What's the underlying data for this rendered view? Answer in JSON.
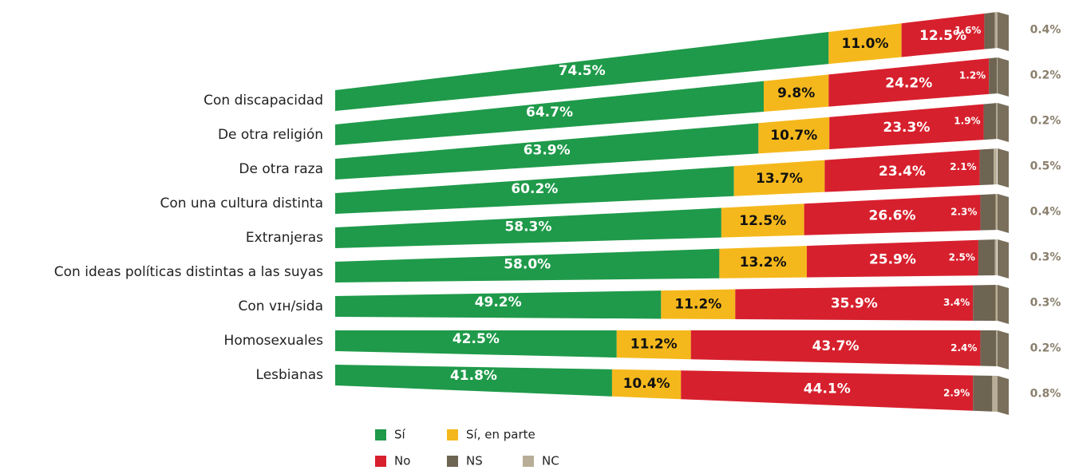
{
  "chart_data": {
    "type": "bar",
    "orientation": "horizontal",
    "stacked": true,
    "categories": [
      "Con discapacidad",
      "De otra religión",
      "De otra raza",
      "Con una cultura distinta",
      "Extranjeras",
      "Con ideas políticas distintas a las suyas",
      "Con vɪʜ/sida",
      "Homosexuales",
      "Lesbianas"
    ],
    "xlim": [
      0,
      100
    ],
    "series": [
      {
        "name": "Sí",
        "color": "#1f9a4a",
        "values": [
          74.5,
          64.7,
          63.9,
          60.2,
          58.3,
          58.0,
          49.2,
          42.5,
          41.8
        ],
        "value_labels": [
          "74.5%",
          "64.7%",
          "63.9%",
          "60.2%",
          "58.3%",
          "58.0%",
          "49.2%",
          "42.5%",
          "41.8%"
        ]
      },
      {
        "name": "Sí, en parte",
        "color": "#f5b81c",
        "values": [
          11.0,
          9.8,
          10.7,
          13.7,
          12.5,
          13.2,
          11.2,
          11.2,
          10.4
        ],
        "value_labels": [
          "11.0%",
          "9.8%",
          "10.7%",
          "13.7%",
          "12.5%",
          "13.2%",
          "11.2%",
          "11.2%",
          "10.4%"
        ]
      },
      {
        "name": "No",
        "color": "#d7202d",
        "values": [
          12.5,
          24.2,
          23.3,
          23.4,
          26.6,
          25.9,
          35.9,
          43.7,
          44.1
        ],
        "value_labels": [
          "12.5%",
          "24.2%",
          "23.3%",
          "23.4%",
          "26.6%",
          "25.9%",
          "35.9%",
          "43.7%",
          "44.1%"
        ]
      },
      {
        "name": "NS",
        "color": "#6e6452",
        "values": [
          1.6,
          1.2,
          1.9,
          2.1,
          2.3,
          2.5,
          3.4,
          2.4,
          2.9
        ],
        "value_labels": [
          "1.6%",
          "1.2%",
          "1.9%",
          "2.1%",
          "2.3%",
          "2.5%",
          "3.4%",
          "2.4%",
          "2.9%"
        ]
      },
      {
        "name": "NC",
        "color": "#b8ad96",
        "values": [
          0.4,
          0.2,
          0.2,
          0.5,
          0.4,
          0.3,
          0.3,
          0.2,
          0.8
        ],
        "value_labels": [
          "0.4%",
          "0.2%",
          "0.2%",
          "0.5%",
          "0.4%",
          "0.3%",
          "0.3%",
          "0.2%",
          "0.8%"
        ]
      }
    ]
  }
}
